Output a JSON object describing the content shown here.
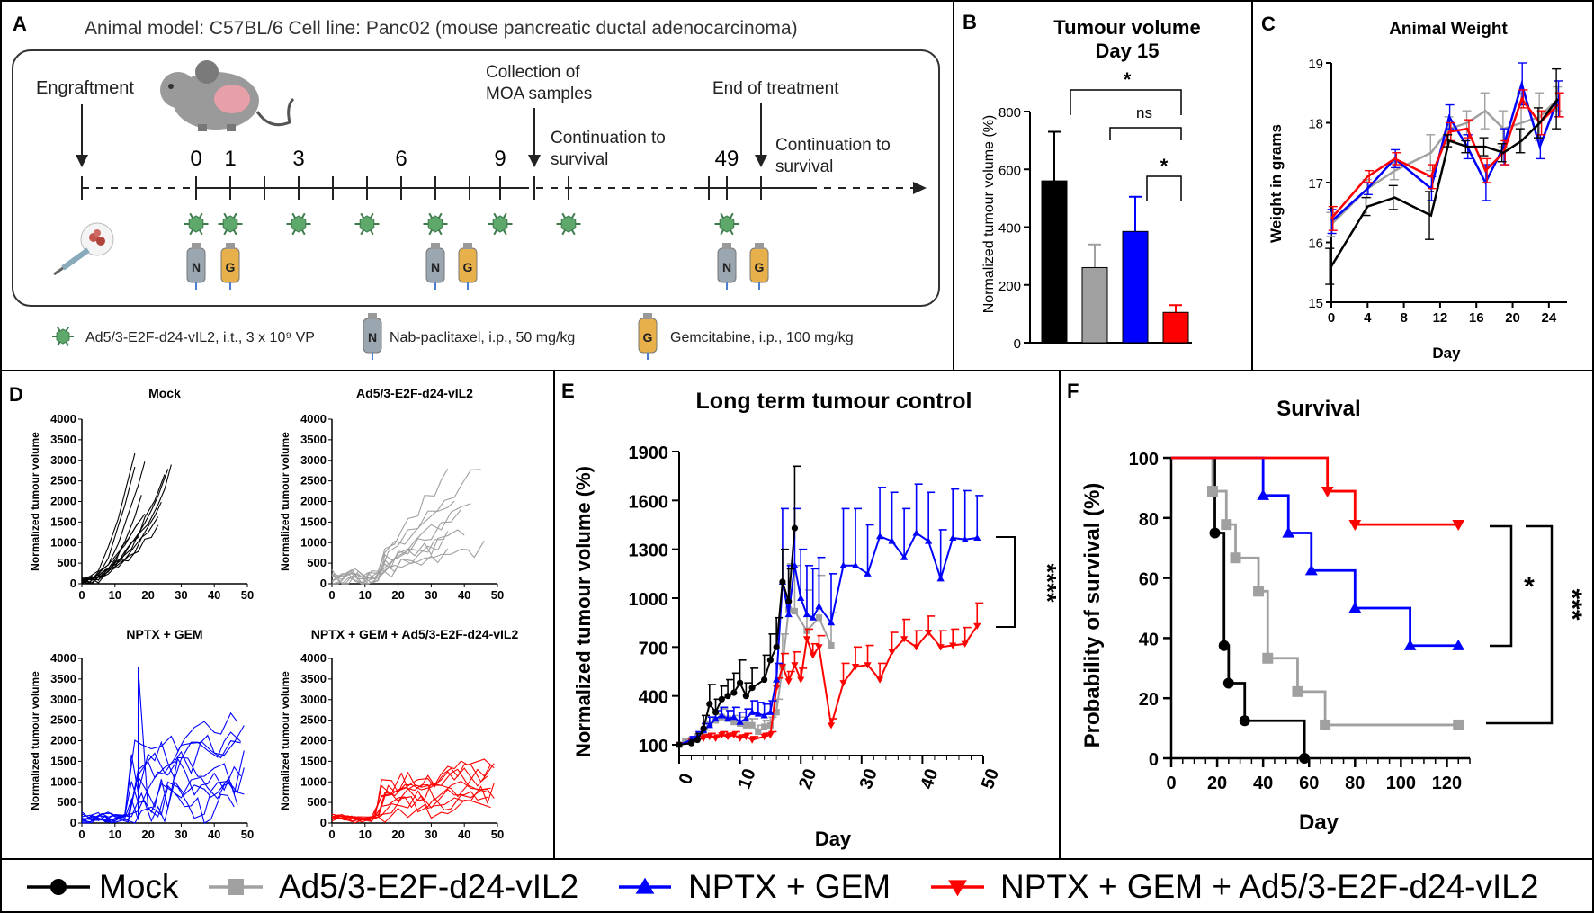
{
  "colors": {
    "mock": "#000000",
    "ad5": "#a0a0a0",
    "nptx": "#0000ff",
    "combo": "#ff0000",
    "virus": "#5ea86b",
    "nab": "#9aa6b0",
    "gem": "#e8b04a"
  },
  "panelA": {
    "letter": "A",
    "header": "Animal model: C57BL/6 Cell line: Panc02 (mouse pancreatic ductal adenocarcinoma)",
    "engraftment": "Engraftment",
    "days": [
      "0",
      "1",
      "3",
      "6",
      "9",
      "49"
    ],
    "collection": [
      "Collection of",
      "MOA samples"
    ],
    "continuation": [
      "Continuation to",
      "survival"
    ],
    "end": "End of treatment",
    "continuation2": [
      "Continuation to",
      "survival"
    ],
    "nab_letter": "N",
    "gem_letter": "G",
    "legend_virus": "Ad5/3-E2F-d24-vIL2, i.t., 3 x 10⁹ VP",
    "legend_nab": "Nab-paclitaxel, i.p., 50 mg/kg",
    "legend_gem": "Gemcitabine, i.p., 100 mg/kg"
  },
  "chart_data": [
    {
      "id": "B",
      "type": "bar",
      "title": "Tumour volume",
      "subtitle": "Day 15",
      "ylabel": "Normalized tumour volume (%)",
      "ylim": [
        0,
        800
      ],
      "yticks": [
        "0",
        "200",
        "400",
        "600",
        "800"
      ],
      "categories": [
        "Mock",
        "Ad5/3-E2F-d24-vIL2",
        "NPTX + GEM",
        "NPTX + GEM + Ad5/3-E2F-d24-vIL2"
      ],
      "values": [
        560,
        260,
        385,
        105
      ],
      "errors": [
        170,
        80,
        120,
        25
      ],
      "annotations": [
        "*",
        "ns",
        "*"
      ]
    },
    {
      "id": "C",
      "type": "line",
      "title": "Animal Weight",
      "xlabel": "Day",
      "ylabel": "Weight in grams",
      "xlim": [
        0,
        26
      ],
      "ylim": [
        15,
        19
      ],
      "xticks": [
        "0",
        "4",
        "8",
        "12",
        "16",
        "20",
        "24"
      ],
      "yticks": [
        "15",
        "16",
        "17",
        "18",
        "19"
      ],
      "x": [
        0,
        4,
        7,
        11,
        13,
        15,
        17,
        19,
        21,
        23,
        25
      ],
      "series": [
        {
          "name": "Mock",
          "values": [
            15.6,
            16.6,
            16.75,
            16.45,
            17.7,
            17.6,
            17.6,
            17.5,
            17.7,
            18.0,
            18.4
          ],
          "errors": [
            0.3,
            0.15,
            0.2,
            0.4,
            0.1,
            0.1,
            0.15,
            0.15,
            0.2,
            0.25,
            0.5
          ]
        },
        {
          "name": "Ad5/3-E2F-d24-vIL2",
          "values": [
            16.3,
            16.9,
            17.2,
            17.5,
            17.9,
            18.0,
            18.2,
            17.9,
            18.0,
            18.1,
            18.4
          ],
          "errors": [
            0.2,
            0.15,
            0.15,
            0.3,
            0.2,
            0.2,
            0.3,
            0.3,
            0.5,
            0.4,
            0.2
          ]
        },
        {
          "name": "NPTX + GEM",
          "values": [
            16.35,
            16.9,
            17.4,
            16.9,
            18.1,
            17.6,
            17.0,
            17.6,
            18.65,
            17.6,
            18.4
          ],
          "errors": [
            0.2,
            0.1,
            0.15,
            0.2,
            0.2,
            0.2,
            0.3,
            0.3,
            0.35,
            0.2,
            0.3
          ]
        },
        {
          "name": "NPTX + GEM + Ad5/3-E2F-d24-vIL2",
          "values": [
            16.4,
            17.1,
            17.4,
            17.1,
            17.85,
            17.9,
            17.2,
            17.5,
            18.4,
            18.0,
            18.3
          ],
          "errors": [
            0.2,
            0.1,
            0.1,
            0.2,
            0.15,
            0.15,
            0.2,
            0.2,
            0.15,
            0.2,
            0.2
          ]
        }
      ]
    },
    {
      "id": "D",
      "type": "line",
      "ylabel": "Normalized tumour volume",
      "xlim": [
        0,
        50
      ],
      "ylim": [
        0,
        4000
      ],
      "xticks": [
        "0",
        "10",
        "20",
        "30",
        "40",
        "50"
      ],
      "yticks": [
        "0",
        "500",
        "1000",
        "1500",
        "2000",
        "2500",
        "3000",
        "3500",
        "4000"
      ],
      "panels": [
        {
          "title": "Mock",
          "series": "mock"
        },
        {
          "title": "Ad5/3-E2F-d24-vIL2",
          "series": "ad5"
        },
        {
          "title": "NPTX + GEM",
          "series": "nptx"
        },
        {
          "title": "NPTX + GEM + Ad5/3-E2F-d24-vIL2",
          "series": "combo"
        }
      ]
    },
    {
      "id": "E",
      "type": "line",
      "title": "Long term tumour control",
      "xlabel": "Day",
      "ylabel": "Normalized tumour volume (%)",
      "xlim": [
        0,
        50
      ],
      "ylim": [
        100,
        1900
      ],
      "xticks": [
        "0",
        "10",
        "20",
        "30",
        "40",
        "50"
      ],
      "yticks": [
        "100",
        "400",
        "700",
        "1000",
        "1300",
        "1600",
        "1900"
      ],
      "significance": "****",
      "series": [
        {
          "name": "Mock",
          "x": [
            0,
            2,
            3,
            4,
            5,
            6,
            7,
            8,
            9,
            10,
            11,
            12,
            14,
            15,
            16,
            17,
            18,
            19
          ],
          "values": [
            100,
            110,
            130,
            200,
            350,
            300,
            380,
            400,
            420,
            480,
            400,
            450,
            500,
            620,
            700,
            1100,
            980,
            1430
          ],
          "errors": [
            0,
            20,
            40,
            80,
            120,
            80,
            80,
            100,
            120,
            140,
            80,
            120,
            150,
            160,
            180,
            200,
            200,
            380
          ]
        },
        {
          "name": "Ad5/3-E2F-d24-vIL2",
          "x": [
            0,
            1,
            2,
            3,
            4,
            5,
            6,
            7,
            8,
            9,
            10,
            11,
            12,
            13,
            14,
            15,
            16,
            17,
            18,
            19,
            21,
            23,
            25
          ],
          "values": [
            100,
            120,
            130,
            150,
            160,
            230,
            250,
            270,
            260,
            240,
            230,
            220,
            220,
            180,
            210,
            220,
            300,
            580,
            930,
            920,
            800,
            880,
            710
          ],
          "errors": [
            0,
            20,
            20,
            30,
            30,
            40,
            40,
            50,
            50,
            40,
            40,
            40,
            40,
            40,
            40,
            50,
            80,
            200,
            280,
            280,
            250,
            260,
            200
          ]
        },
        {
          "name": "NPTX + GEM",
          "x": [
            0,
            2,
            3,
            4,
            5,
            6,
            7,
            8,
            9,
            10,
            11,
            12,
            13,
            14,
            15,
            16,
            17,
            18,
            19,
            20,
            21,
            22,
            23,
            25,
            27,
            29,
            31,
            33,
            35,
            37,
            39,
            41,
            43,
            45,
            47,
            49
          ],
          "values": [
            100,
            130,
            150,
            190,
            220,
            260,
            280,
            260,
            270,
            240,
            260,
            300,
            290,
            280,
            300,
            500,
            1100,
            900,
            1200,
            1000,
            900,
            880,
            950,
            850,
            1200,
            1200,
            1150,
            1380,
            1350,
            1250,
            1400,
            1350,
            1120,
            1370,
            1360,
            1370
          ],
          "errors": [
            0,
            20,
            30,
            40,
            50,
            50,
            50,
            50,
            60,
            60,
            60,
            70,
            70,
            70,
            70,
            100,
            450,
            300,
            350,
            300,
            300,
            300,
            300,
            300,
            350,
            350,
            300,
            300,
            300,
            300,
            300,
            300,
            300,
            300,
            300,
            260
          ]
        },
        {
          "name": "NPTX + GEM + Ad5/3-E2F-d24-vIL2",
          "x": [
            0,
            2,
            4,
            5,
            6,
            7,
            8,
            9,
            10,
            11,
            12,
            14,
            15,
            16,
            17,
            18,
            19,
            20,
            21,
            22,
            23,
            25,
            27,
            29,
            31,
            33,
            35,
            37,
            39,
            41,
            43,
            45,
            47,
            49
          ],
          "values": [
            100,
            120,
            140,
            150,
            140,
            160,
            150,
            160,
            140,
            150,
            130,
            150,
            160,
            450,
            580,
            490,
            590,
            500,
            750,
            650,
            700,
            220,
            480,
            580,
            590,
            500,
            670,
            750,
            700,
            790,
            700,
            710,
            720,
            830
          ],
          "errors": [
            0,
            20,
            20,
            20,
            20,
            20,
            20,
            20,
            20,
            20,
            20,
            20,
            20,
            60,
            80,
            60,
            80,
            70,
            60,
            70,
            70,
            40,
            120,
            120,
            120,
            100,
            120,
            120,
            100,
            100,
            100,
            100,
            100,
            140
          ]
        }
      ]
    },
    {
      "id": "F",
      "type": "line",
      "title": "Survival",
      "xlabel": "Day",
      "ylabel": "Probability of survival (%)",
      "xlim": [
        0,
        130
      ],
      "ylim": [
        0,
        100
      ],
      "xticks": [
        "0",
        "20",
        "40",
        "60",
        "80",
        "100",
        "120"
      ],
      "yticks": [
        "0",
        "20",
        "40",
        "60",
        "80",
        "100"
      ],
      "significance": [
        "*",
        "***"
      ],
      "series": [
        {
          "name": "Mock",
          "steps": [
            [
              0,
              100
            ],
            [
              19,
              75
            ],
            [
              23,
              37.5
            ],
            [
              25,
              25
            ],
            [
              32,
              12.5
            ],
            [
              58,
              0
            ]
          ]
        },
        {
          "name": "Ad5/3-E2F-d24-vIL2",
          "steps": [
            [
              0,
              100
            ],
            [
              18,
              88.9
            ],
            [
              24,
              77.8
            ],
            [
              28,
              66.7
            ],
            [
              38,
              55.6
            ],
            [
              42,
              33.3
            ],
            [
              55,
              22.2
            ],
            [
              67,
              11.1
            ],
            [
              125,
              11.1
            ]
          ]
        },
        {
          "name": "NPTX + GEM",
          "steps": [
            [
              0,
              100
            ],
            [
              40,
              87.5
            ],
            [
              51,
              75
            ],
            [
              61,
              62.5
            ],
            [
              80,
              50
            ],
            [
              104,
              37.5
            ],
            [
              125,
              37.5
            ]
          ]
        },
        {
          "name": "NPTX + GEM + Ad5/3-E2F-d24-vIL2",
          "steps": [
            [
              0,
              100
            ],
            [
              68,
              88.9
            ],
            [
              80,
              77.8
            ],
            [
              125,
              77.8
            ]
          ]
        }
      ]
    }
  ],
  "letters": {
    "B": "B",
    "C": "C",
    "D": "D",
    "E": "E",
    "F": "F"
  },
  "legend": [
    "Mock",
    "Ad5/3-E2F-d24-vIL2",
    "NPTX + GEM",
    "NPTX + GEM + Ad5/3-E2F-d24-vIL2"
  ]
}
